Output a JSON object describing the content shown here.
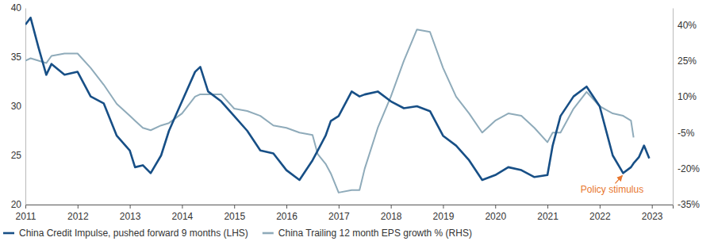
{
  "chart_data": {
    "type": "line",
    "x": [
      2011.0,
      2011.1,
      2011.25,
      2011.4,
      2011.5,
      2011.75,
      2012.0,
      2012.25,
      2012.5,
      2012.75,
      2013.0,
      2013.1,
      2013.25,
      2013.4,
      2013.6,
      2013.75,
      2014.0,
      2014.25,
      2014.35,
      2014.5,
      2014.75,
      2015.0,
      2015.25,
      2015.5,
      2015.75,
      2016.0,
      2016.25,
      2016.5,
      2016.6,
      2016.75,
      2016.85,
      2017.0,
      2017.25,
      2017.4,
      2017.5,
      2017.75,
      2018.0,
      2018.25,
      2018.5,
      2018.75,
      2019.0,
      2019.25,
      2019.5,
      2019.75,
      2020.0,
      2020.25,
      2020.5,
      2020.75,
      2021.0,
      2021.1,
      2021.25,
      2021.5,
      2021.75,
      2022.0,
      2022.25,
      2022.45,
      2022.6,
      2022.65,
      2022.75,
      2022.85,
      2022.95
    ],
    "xlim": [
      2011,
      2023.4
    ],
    "xticks": [
      2011,
      2012,
      2013,
      2014,
      2015,
      2016,
      2017,
      2018,
      2019,
      2020,
      2021,
      2022,
      2023
    ],
    "ylim": [
      20,
      40
    ],
    "yticks": [
      20,
      25,
      30,
      35,
      40
    ],
    "y2lim": [
      -35,
      47
    ],
    "y2ticks": [
      {
        "value": -35,
        "label": "-35%"
      },
      {
        "value": -20,
        "label": "-20%"
      },
      {
        "value": -5,
        "label": "-5%"
      },
      {
        "value": 10,
        "label": "10%"
      },
      {
        "value": 25,
        "label": "25%"
      },
      {
        "value": 40,
        "label": "40%"
      }
    ],
    "grid": false,
    "legend": "bottom",
    "series": [
      {
        "name": "China Credit Impulse, pushed forward 9 months (LHS)",
        "color": "#174f86",
        "values": [
          38.3,
          39,
          36,
          33.2,
          34.3,
          33.2,
          33.5,
          31,
          30.3,
          27,
          25.5,
          23.8,
          24,
          23.2,
          25,
          27.5,
          30.5,
          33.5,
          34,
          31.5,
          30.5,
          29,
          27.5,
          25.5,
          25.2,
          23.5,
          22.5,
          24.5,
          25.5,
          27,
          28.5,
          29,
          31.5,
          31,
          31.2,
          31.5,
          30.5,
          29.8,
          30,
          29.5,
          27,
          26,
          24.5,
          22.5,
          23,
          23.8,
          23.5,
          22.8,
          23,
          26,
          29,
          31,
          32,
          30,
          25,
          23.2,
          23.8,
          24.2,
          24.8,
          26,
          24.7
        ]
      },
      {
        "name": "China Trailing 12 month EPS growth % (RHS)",
        "color": "#8fabba",
        "axis": "y2",
        "values": [
          25,
          26,
          25,
          24,
          27,
          28,
          28,
          22,
          15,
          7,
          2,
          0,
          -3,
          -4,
          -2,
          -1,
          3,
          10,
          11,
          11,
          11,
          5,
          4,
          2,
          -2,
          -3,
          -5,
          -6,
          -14,
          -18,
          -22,
          -30,
          -29,
          -29,
          -20,
          -3,
          10,
          25,
          38,
          37,
          22,
          10,
          3,
          -5,
          0,
          3,
          2,
          -3,
          -9,
          -5,
          -5,
          5,
          12,
          6,
          3,
          2,
          0,
          -7,
          null,
          null,
          null
        ]
      }
    ],
    "annotations": [
      {
        "text": "Policy stimulus",
        "x": 2022.45,
        "y": 23.2
      }
    ]
  }
}
